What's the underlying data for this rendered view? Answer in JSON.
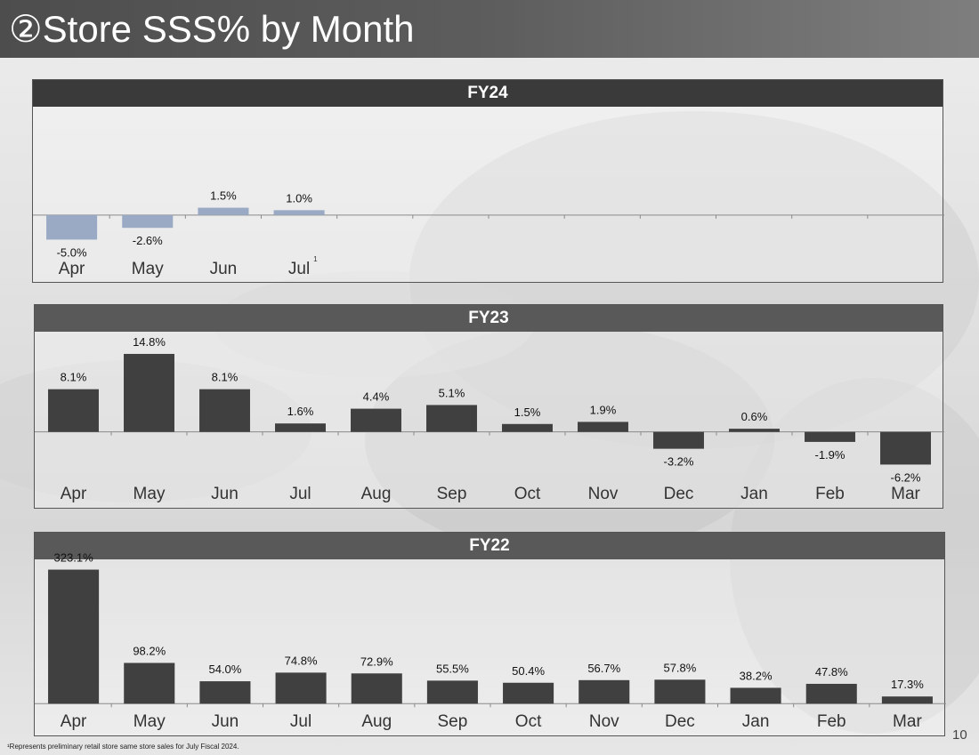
{
  "title": "②Store SSS% by Month",
  "footnote": "¹Represents preliminary retail store same store sales for July Fiscal 2024.",
  "page_number": "10",
  "colors": {
    "fy24_bar": "#9aaac4",
    "fy23_bar": "#404040",
    "fy22_bar": "#404040",
    "header_dark": "#3a3a3a",
    "header_mid": "#595959"
  },
  "chart_data": [
    {
      "type": "bar",
      "title": "FY24",
      "categories": [
        "Apr",
        "May",
        "Jun",
        "Jul"
      ],
      "category_superscripts": [
        "",
        "",
        "",
        "1"
      ],
      "values": [
        -5.0,
        -2.6,
        1.5,
        1.0
      ],
      "labels": [
        "-5.0%",
        "-2.6%",
        "1.5%",
        "1.0%"
      ],
      "slots": 12,
      "ylim": [
        -8,
        21
      ]
    },
    {
      "type": "bar",
      "title": "FY23",
      "categories": [
        "Apr",
        "May",
        "Jun",
        "Jul",
        "Aug",
        "Sep",
        "Oct",
        "Nov",
        "Dec",
        "Jan",
        "Feb",
        "Mar"
      ],
      "values": [
        8.1,
        14.8,
        8.1,
        1.6,
        4.4,
        5.1,
        1.5,
        1.9,
        -3.2,
        0.6,
        -1.9,
        -6.2
      ],
      "labels": [
        "8.1%",
        "14.8%",
        "8.1%",
        "1.6%",
        "4.4%",
        "5.1%",
        "1.5%",
        "1.9%",
        "-3.2%",
        "0.6%",
        "-1.9%",
        "-6.2%"
      ],
      "slots": 12,
      "ylim": [
        -9,
        18
      ]
    },
    {
      "type": "bar",
      "title": "FY22",
      "categories": [
        "Apr",
        "May",
        "Jun",
        "Jul",
        "Aug",
        "Sep",
        "Oct",
        "Nov",
        "Dec",
        "Jan",
        "Feb",
        "Mar"
      ],
      "values": [
        323.1,
        98.2,
        54.0,
        74.8,
        72.9,
        55.5,
        50.4,
        56.7,
        57.8,
        38.2,
        47.8,
        17.3
      ],
      "labels": [
        "323.1%",
        "98.2%",
        "54.0%",
        "74.8%",
        "72.9%",
        "55.5%",
        "50.4%",
        "56.7%",
        "57.8%",
        "38.2%",
        "47.8%",
        "17.3%"
      ],
      "slots": 12,
      "ylim": [
        -8,
        335
      ]
    }
  ]
}
